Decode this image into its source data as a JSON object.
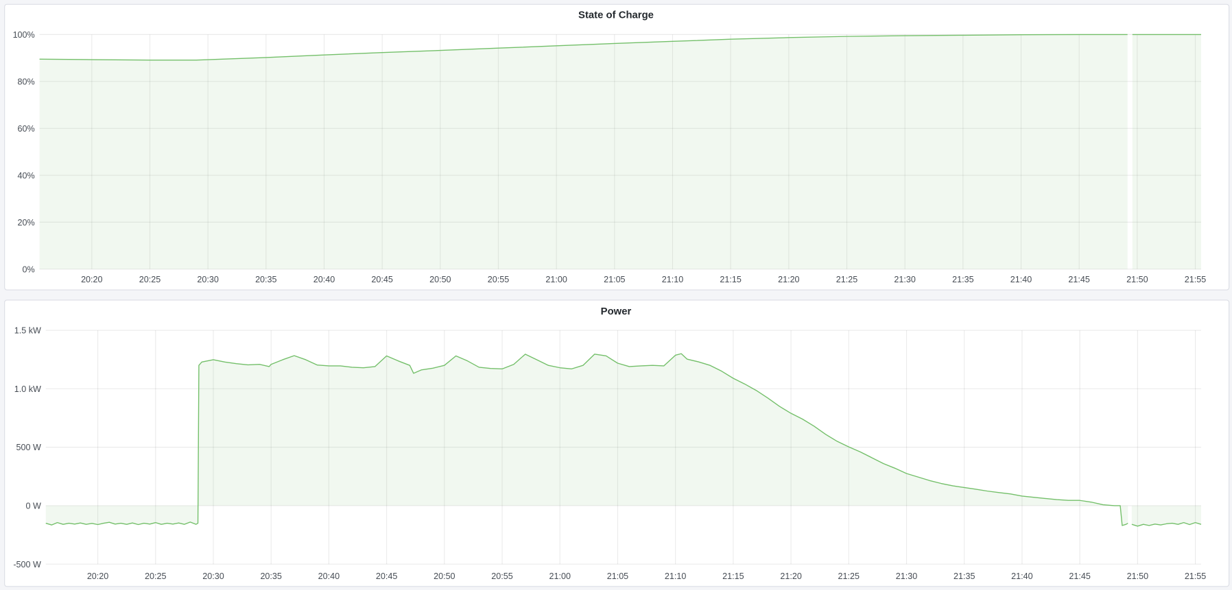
{
  "colors": {
    "series": "#73bf69",
    "background": "#f4f5f8",
    "panel": "#ffffff"
  },
  "chart_data": [
    {
      "type": "area",
      "title": "State of Charge",
      "xlabel": "",
      "ylabel": "",
      "x_range": [
        "20:15:30",
        "21:55:30"
      ],
      "ylim": [
        0,
        100
      ],
      "y_unit": "%",
      "grid": true,
      "x_ticks": [
        "20:20",
        "20:25",
        "20:30",
        "20:35",
        "20:40",
        "20:45",
        "20:50",
        "20:55",
        "21:00",
        "21:05",
        "21:10",
        "21:15",
        "21:20",
        "21:25",
        "21:30",
        "21:35",
        "21:40",
        "21:45",
        "21:50",
        "21:55"
      ],
      "y_ticks": [
        {
          "value": 0,
          "label": "0%"
        },
        {
          "value": 20,
          "label": "20%"
        },
        {
          "value": 40,
          "label": "40%"
        },
        {
          "value": 60,
          "label": "60%"
        },
        {
          "value": 80,
          "label": "80%"
        },
        {
          "value": 100,
          "label": "100%"
        }
      ],
      "points": [
        [
          "20:15:30",
          89.5
        ],
        [
          "20:20",
          89.3
        ],
        [
          "20:25",
          89.1
        ],
        [
          "20:29",
          89.1
        ],
        [
          "20:35",
          90.2
        ],
        [
          "20:40",
          91.3
        ],
        [
          "20:45",
          92.3
        ],
        [
          "20:50",
          93.2
        ],
        [
          "20:55",
          94.2
        ],
        [
          "21:00",
          95.2
        ],
        [
          "21:05",
          96.2
        ],
        [
          "21:10",
          97.1
        ],
        [
          "21:15",
          98.0
        ],
        [
          "21:20",
          98.7
        ],
        [
          "21:25",
          99.2
        ],
        [
          "21:30",
          99.5
        ],
        [
          "21:35",
          99.7
        ],
        [
          "21:40",
          99.9
        ],
        [
          "21:45",
          100
        ],
        [
          "21:49:10",
          100
        ],
        [
          "21:49:20",
          null
        ],
        [
          "21:49:35",
          100
        ],
        [
          "21:55:30",
          100
        ]
      ]
    },
    {
      "type": "area",
      "title": "Power",
      "xlabel": "",
      "ylabel": "",
      "x_range": [
        "20:15:30",
        "21:55:30"
      ],
      "ylim": [
        -500,
        1500
      ],
      "y_unit": "W",
      "grid": true,
      "x_ticks": [
        "20:20",
        "20:25",
        "20:30",
        "20:35",
        "20:40",
        "20:45",
        "20:50",
        "20:55",
        "21:00",
        "21:05",
        "21:10",
        "21:15",
        "21:20",
        "21:25",
        "21:30",
        "21:35",
        "21:40",
        "21:45",
        "21:50",
        "21:55"
      ],
      "y_ticks": [
        {
          "value": -500,
          "label": "-500 W"
        },
        {
          "value": 0,
          "label": "0 W"
        },
        {
          "value": 500,
          "label": "500 W"
        },
        {
          "value": 1000,
          "label": "1.0 kW"
        },
        {
          "value": 1500,
          "label": "1.5 kW"
        }
      ],
      "points": [
        [
          "20:15:30",
          -150
        ],
        [
          "20:16",
          -165
        ],
        [
          "20:16:30",
          -145
        ],
        [
          "20:17",
          -160
        ],
        [
          "20:17:30",
          -150
        ],
        [
          "20:18",
          -158
        ],
        [
          "20:18:30",
          -148
        ],
        [
          "20:19",
          -160
        ],
        [
          "20:19:30",
          -152
        ],
        [
          "20:20",
          -162
        ],
        [
          "20:20:30",
          -150
        ],
        [
          "20:21",
          -142
        ],
        [
          "20:21:30",
          -158
        ],
        [
          "20:22",
          -150
        ],
        [
          "20:22:30",
          -160
        ],
        [
          "20:23",
          -148
        ],
        [
          "20:23:30",
          -162
        ],
        [
          "20:24",
          -150
        ],
        [
          "20:24:30",
          -158
        ],
        [
          "20:25",
          -145
        ],
        [
          "20:25:30",
          -160
        ],
        [
          "20:26",
          -150
        ],
        [
          "20:26:30",
          -158
        ],
        [
          "20:27",
          -148
        ],
        [
          "20:27:30",
          -160
        ],
        [
          "20:28",
          -140
        ],
        [
          "20:28:30",
          -160
        ],
        [
          "20:28:40",
          -150
        ],
        [
          "20:28:45",
          1200
        ],
        [
          "20:29",
          1229
        ],
        [
          "20:30",
          1248
        ],
        [
          "20:31",
          1229
        ],
        [
          "20:32",
          1215
        ],
        [
          "20:33",
          1205
        ],
        [
          "20:34",
          1209
        ],
        [
          "20:34:50",
          1190
        ],
        [
          "20:35",
          1209
        ],
        [
          "20:36",
          1248
        ],
        [
          "20:37",
          1283
        ],
        [
          "20:38",
          1248
        ],
        [
          "20:39",
          1203
        ],
        [
          "20:40",
          1196
        ],
        [
          "20:41",
          1196
        ],
        [
          "20:42",
          1184
        ],
        [
          "20:43",
          1180
        ],
        [
          "20:44",
          1190
        ],
        [
          "20:45",
          1281
        ],
        [
          "20:46",
          1238
        ],
        [
          "20:47",
          1200
        ],
        [
          "20:47:20",
          1132
        ],
        [
          "20:48",
          1161
        ],
        [
          "20:49",
          1176
        ],
        [
          "20:50",
          1200
        ],
        [
          "20:51",
          1281
        ],
        [
          "20:52",
          1238
        ],
        [
          "20:53",
          1184
        ],
        [
          "20:54",
          1174
        ],
        [
          "20:55",
          1170
        ],
        [
          "20:56",
          1209
        ],
        [
          "20:57",
          1296
        ],
        [
          "20:58",
          1248
        ],
        [
          "20:59",
          1200
        ],
        [
          "21:00",
          1180
        ],
        [
          "21:01",
          1170
        ],
        [
          "21:02",
          1200
        ],
        [
          "21:03",
          1296
        ],
        [
          "21:04",
          1281
        ],
        [
          "21:05",
          1219
        ],
        [
          "21:06",
          1190
        ],
        [
          "21:07",
          1196
        ],
        [
          "21:08",
          1200
        ],
        [
          "21:09",
          1196
        ],
        [
          "21:10",
          1287
        ],
        [
          "21:10:30",
          1300
        ],
        [
          "21:11",
          1254
        ],
        [
          "21:12",
          1230
        ],
        [
          "21:13",
          1200
        ],
        [
          "21:14",
          1150
        ],
        [
          "21:15",
          1090
        ],
        [
          "21:16",
          1040
        ],
        [
          "21:17",
          985
        ],
        [
          "21:18",
          920
        ],
        [
          "21:19",
          850
        ],
        [
          "21:20",
          790
        ],
        [
          "21:21",
          740
        ],
        [
          "21:22",
          680
        ],
        [
          "21:23",
          610
        ],
        [
          "21:24",
          550
        ],
        [
          "21:25",
          503
        ],
        [
          "21:26",
          460
        ],
        [
          "21:27",
          410
        ],
        [
          "21:28",
          360
        ],
        [
          "21:29",
          320
        ],
        [
          "21:30",
          275
        ],
        [
          "21:31",
          245
        ],
        [
          "21:32",
          215
        ],
        [
          "21:33",
          190
        ],
        [
          "21:34",
          170
        ],
        [
          "21:35",
          155
        ],
        [
          "21:36",
          140
        ],
        [
          "21:37",
          125
        ],
        [
          "21:38",
          112
        ],
        [
          "21:39",
          100
        ],
        [
          "21:40",
          82
        ],
        [
          "21:41",
          72
        ],
        [
          "21:42",
          62
        ],
        [
          "21:43",
          52
        ],
        [
          "21:44",
          45
        ],
        [
          "21:45",
          45
        ],
        [
          "21:46",
          30
        ],
        [
          "21:47",
          8
        ],
        [
          "21:48",
          0
        ],
        [
          "21:48:30",
          0
        ],
        [
          "21:48:40",
          -170
        ],
        [
          "21:49",
          -160
        ],
        [
          "21:49:10",
          -150
        ],
        [
          "21:49:20",
          null
        ],
        [
          "21:49:30",
          -160
        ],
        [
          "21:50",
          -175
        ],
        [
          "21:50:30",
          -160
        ],
        [
          "21:51",
          -170
        ],
        [
          "21:51:30",
          -158
        ],
        [
          "21:52",
          -165
        ],
        [
          "21:52:30",
          -155
        ],
        [
          "21:53",
          -150
        ],
        [
          "21:53:30",
          -160
        ],
        [
          "21:54",
          -145
        ],
        [
          "21:54:30",
          -162
        ],
        [
          "21:55",
          -145
        ],
        [
          "21:55:30",
          -160
        ]
      ]
    }
  ]
}
